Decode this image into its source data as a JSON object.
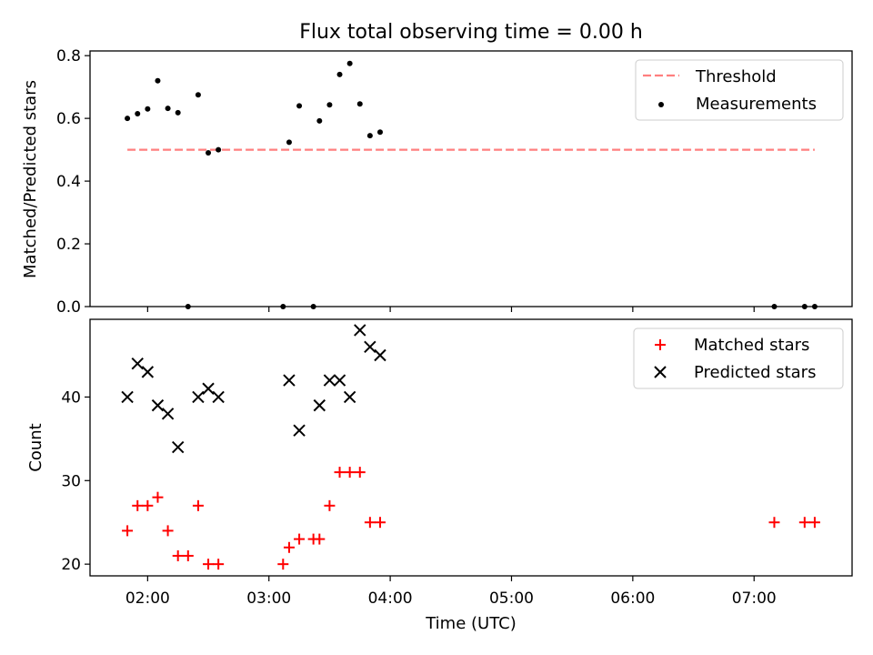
{
  "chart_data": {
    "title": "Flux total observing time = 0.00 h",
    "xlabel": "Time (UTC)",
    "x_range_hours": [
      1.525,
      7.808
    ],
    "xticks": [
      {
        "value": 2,
        "label": "02:00"
      },
      {
        "value": 3,
        "label": "03:00"
      },
      {
        "value": 4,
        "label": "04:00"
      },
      {
        "value": 5,
        "label": "05:00"
      },
      {
        "value": 6,
        "label": "06:00"
      },
      {
        "value": 7,
        "label": "07:00"
      }
    ],
    "top": {
      "type": "scatter",
      "ylabel": "Matched/Predicted stars",
      "ylim": [
        0,
        0.815
      ],
      "yticks": [
        "0.0",
        "0.2",
        "0.4",
        "0.6",
        "0.8"
      ],
      "legend_position": "upper right",
      "threshold": {
        "name": "Threshold",
        "value": 0.5,
        "x": [
          1.833,
          7.5
        ],
        "color": "#ff7f7f"
      },
      "measurements": {
        "name": "Measurements",
        "color": "#000000",
        "x": [
          1.833,
          1.9167,
          2.0,
          2.0833,
          2.1667,
          2.25,
          2.3333,
          2.4167,
          2.5,
          2.5833,
          3.1167,
          3.1667,
          3.25,
          3.3667,
          3.4167,
          3.5,
          3.5833,
          3.6667,
          3.75,
          3.8333,
          3.9167,
          7.1667,
          7.4167,
          7.5
        ],
        "y": [
          0.6,
          0.615,
          0.63,
          0.72,
          0.632,
          0.618,
          0.0,
          0.675,
          0.49,
          0.5,
          0.0,
          0.524,
          0.64,
          0.0,
          0.592,
          0.643,
          0.74,
          0.775,
          0.646,
          0.545,
          0.556,
          0.0,
          0.0,
          0.0
        ]
      }
    },
    "bottom": {
      "type": "scatter",
      "ylabel": "Count",
      "ylim": [
        18.6,
        49.3
      ],
      "yticks": [
        "20",
        "30",
        "40"
      ],
      "legend_position": "upper right",
      "series": [
        {
          "name": "Matched stars",
          "marker": "plus",
          "color": "#ff0000",
          "x": [
            1.833,
            1.9167,
            2.0,
            2.0833,
            2.1667,
            2.25,
            2.3333,
            2.4167,
            2.5,
            2.5833,
            3.1167,
            3.1667,
            3.25,
            3.3667,
            3.4167,
            3.5,
            3.5833,
            3.6667,
            3.75,
            3.8333,
            3.9167,
            7.1667,
            7.4167,
            7.5
          ],
          "y": [
            24,
            27,
            27,
            28,
            24,
            21,
            21,
            27,
            20,
            20,
            20,
            22,
            23,
            23,
            23,
            27,
            31,
            31,
            31,
            25,
            25,
            25,
            25,
            25
          ]
        },
        {
          "name": "Predicted stars",
          "marker": "x",
          "color": "#000000",
          "x": [
            1.833,
            1.9167,
            2.0,
            2.0833,
            2.1667,
            2.25,
            2.4167,
            2.5,
            2.5833,
            3.1667,
            3.25,
            3.4167,
            3.5,
            3.5833,
            3.6667,
            3.75,
            3.8333,
            3.9167
          ],
          "y": [
            40,
            44,
            43,
            39,
            38,
            34,
            40,
            41,
            40,
            42,
            36,
            39,
            42,
            42,
            40,
            48,
            46,
            45
          ]
        }
      ]
    }
  }
}
